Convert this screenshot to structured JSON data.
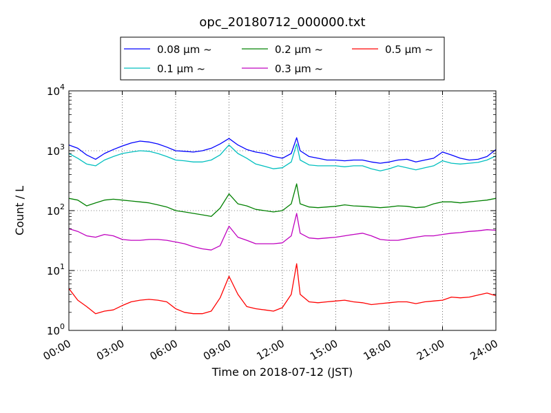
{
  "chart_data": {
    "type": "line",
    "title": "opc_20180712_000000.txt",
    "xlabel": "Time on 2018-07-12 (JST)",
    "ylabel": "Count / L",
    "y_scale": "log",
    "ylim": [
      1,
      10000
    ],
    "xlim_hours": [
      0,
      24
    ],
    "grid": true,
    "legend_placement": "top-center, above plot",
    "x_ticks": [
      "00:00",
      "03:00",
      "06:00",
      "09:00",
      "12:00",
      "15:00",
      "18:00",
      "21:00",
      "24:00"
    ],
    "y_ticks": [
      {
        "base": "10",
        "exp": "0"
      },
      {
        "base": "10",
        "exp": "1"
      },
      {
        "base": "10",
        "exp": "2"
      },
      {
        "base": "10",
        "exp": "3"
      },
      {
        "base": "10",
        "exp": "4"
      }
    ],
    "x_hours": [
      0,
      0.5,
      1,
      1.5,
      2,
      2.5,
      3,
      3.5,
      4,
      4.5,
      5,
      5.5,
      6,
      6.5,
      7,
      7.5,
      8,
      8.5,
      9,
      9.5,
      10,
      10.5,
      11,
      11.5,
      12,
      12.5,
      12.8,
      13,
      13.5,
      14,
      14.5,
      15,
      15.5,
      16,
      16.5,
      17,
      17.5,
      18,
      18.5,
      19,
      19.5,
      20,
      20.5,
      21,
      21.5,
      22,
      22.5,
      23,
      23.5,
      24
    ],
    "series": [
      {
        "name": "0.08 μm ~",
        "color": "#0000ff",
        "values": [
          1250,
          1100,
          850,
          720,
          900,
          1050,
          1200,
          1350,
          1450,
          1400,
          1300,
          1150,
          1000,
          980,
          950,
          1000,
          1100,
          1300,
          1600,
          1250,
          1050,
          950,
          900,
          800,
          750,
          900,
          1650,
          1000,
          800,
          750,
          700,
          700,
          680,
          700,
          700,
          650,
          620,
          650,
          700,
          720,
          650,
          700,
          750,
          950,
          850,
          750,
          700,
          720,
          800,
          1050
        ]
      },
      {
        "name": "0.1 μm ~",
        "color": "#00bfbf",
        "values": [
          900,
          750,
          600,
          560,
          700,
          800,
          900,
          950,
          1000,
          980,
          900,
          800,
          700,
          680,
          650,
          650,
          700,
          850,
          1250,
          900,
          750,
          600,
          550,
          500,
          520,
          650,
          1300,
          700,
          580,
          560,
          560,
          560,
          540,
          560,
          560,
          500,
          460,
          500,
          560,
          520,
          480,
          520,
          560,
          680,
          620,
          600,
          620,
          640,
          700,
          820
        ]
      },
      {
        "name": "0.2 μm ~",
        "color": "#008000",
        "values": [
          160,
          150,
          120,
          135,
          150,
          155,
          150,
          145,
          140,
          135,
          125,
          115,
          100,
          95,
          90,
          85,
          80,
          110,
          190,
          130,
          120,
          105,
          100,
          95,
          100,
          130,
          280,
          130,
          115,
          112,
          115,
          118,
          125,
          120,
          118,
          115,
          112,
          115,
          120,
          118,
          112,
          115,
          130,
          140,
          140,
          135,
          140,
          145,
          150,
          160
        ]
      },
      {
        "name": "0.3 μm ~",
        "color": "#bf00bf",
        "values": [
          50,
          45,
          38,
          36,
          40,
          38,
          33,
          32,
          32,
          33,
          33,
          32,
          30,
          28,
          25,
          23,
          22,
          26,
          55,
          36,
          32,
          28,
          28,
          28,
          29,
          38,
          90,
          42,
          35,
          34,
          35,
          36,
          38,
          40,
          42,
          38,
          33,
          32,
          32,
          34,
          36,
          38,
          38,
          40,
          42,
          43,
          45,
          46,
          48,
          47
        ]
      },
      {
        "name": "0.5 μm ~",
        "color": "#ff0000",
        "values": [
          5,
          3.2,
          2.5,
          1.9,
          2.1,
          2.2,
          2.6,
          3,
          3.2,
          3.3,
          3.2,
          3,
          2.3,
          2,
          1.9,
          1.9,
          2.1,
          3.5,
          8,
          4,
          2.5,
          2.3,
          2.2,
          2.1,
          2.4,
          4,
          13,
          4,
          3,
          2.9,
          3,
          3.1,
          3.2,
          3,
          2.9,
          2.7,
          2.8,
          2.9,
          3,
          3,
          2.8,
          3,
          3.1,
          3.2,
          3.6,
          3.5,
          3.6,
          3.9,
          4.2,
          3.8
        ]
      }
    ]
  }
}
